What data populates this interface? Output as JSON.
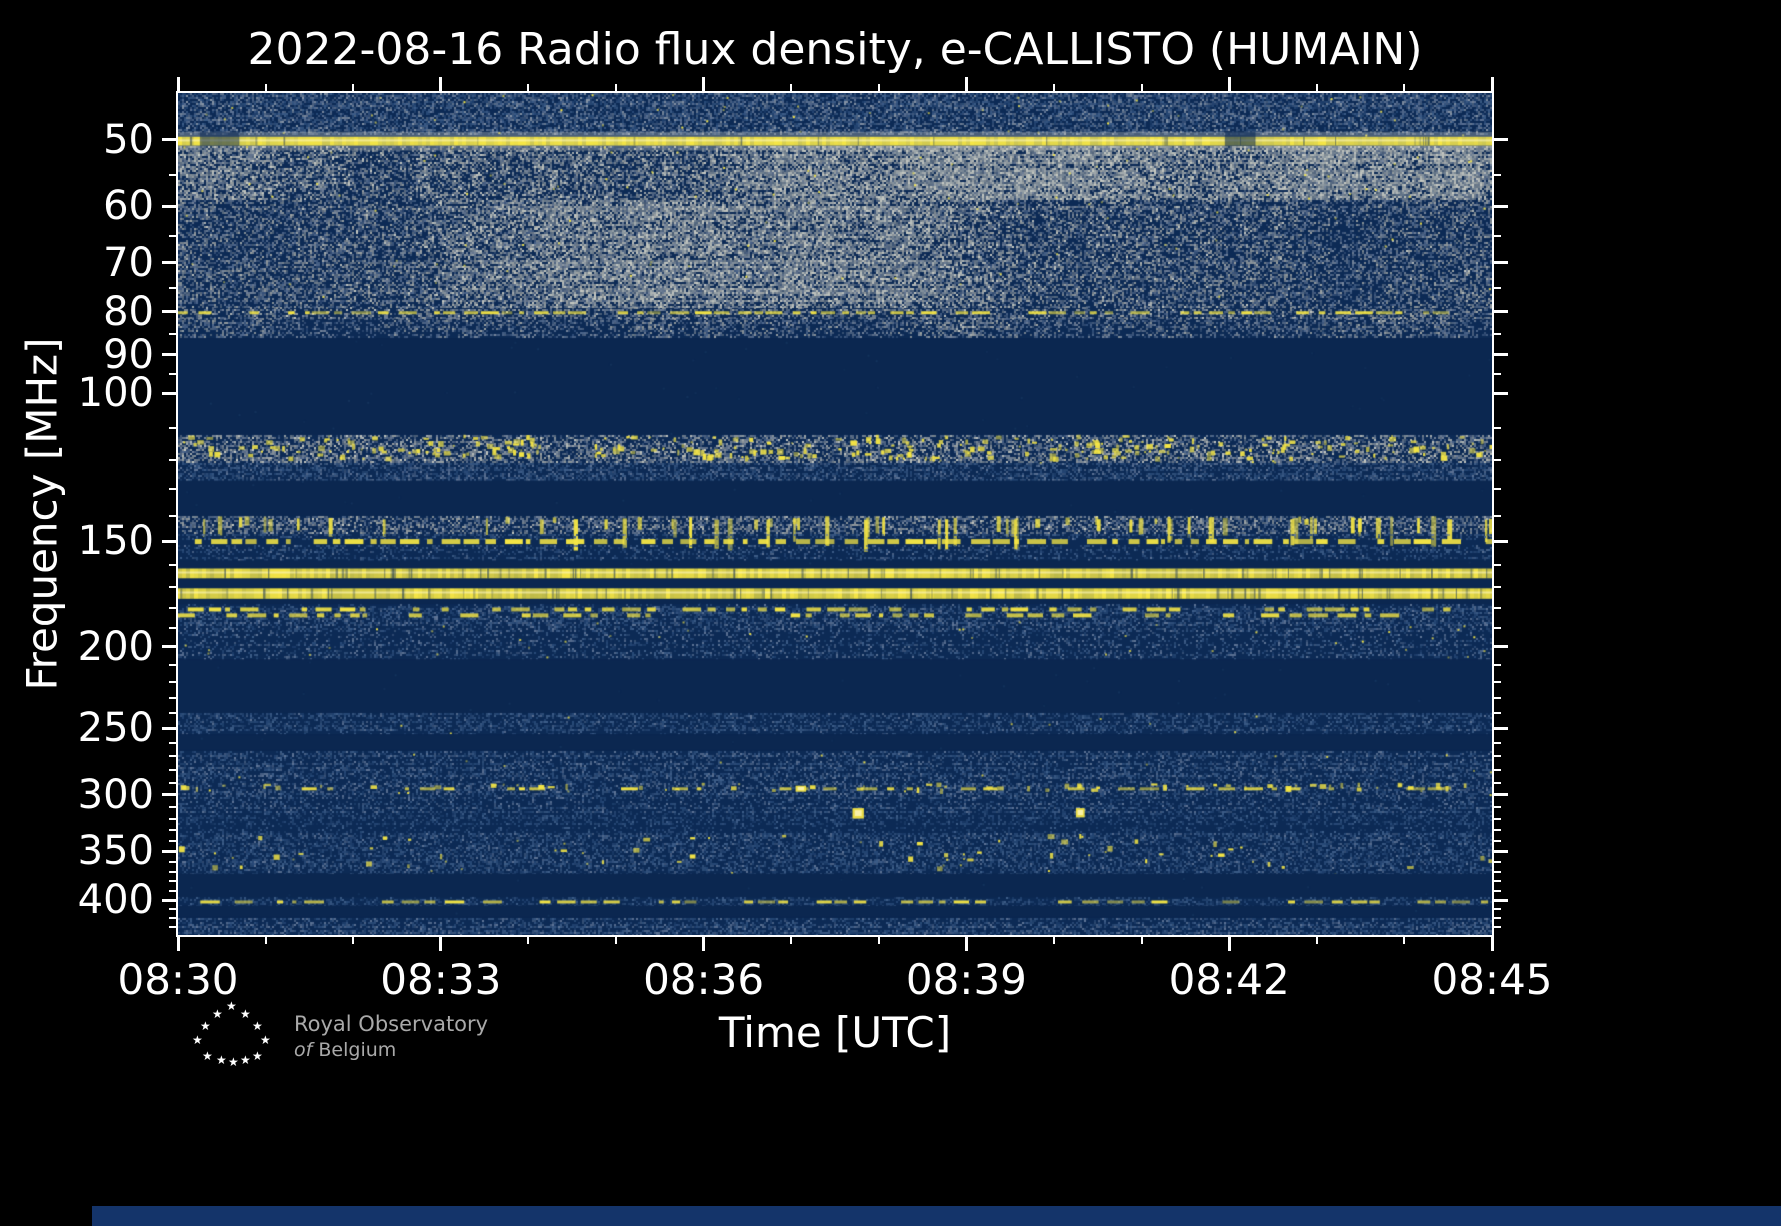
{
  "chart_data": {
    "type": "heatmap",
    "title": "2022-08-16 Radio flux density, e-CALLISTO (HUMAIN)",
    "xlabel": "Time [UTC]",
    "ylabel": "Frequency [MHz]",
    "x_range_minutes": [
      0,
      15
    ],
    "x_minor_step": 1,
    "x_ticks": [
      {
        "m": 0,
        "label": "08:30"
      },
      {
        "m": 3,
        "label": "08:33"
      },
      {
        "m": 6,
        "label": "08:36"
      },
      {
        "m": 9,
        "label": "08:39"
      },
      {
        "m": 12,
        "label": "08:42"
      },
      {
        "m": 15,
        "label": "08:45"
      }
    ],
    "y_scale": "log",
    "y_range_mhz": [
      44,
      440
    ],
    "y_ticks_mhz": [
      50,
      60,
      70,
      80,
      90,
      100,
      150,
      200,
      250,
      300,
      350,
      400
    ],
    "colors": {
      "bg": "#0c2a55",
      "bg_quiet": "#0b2750",
      "accent": "#f5e645",
      "halo": "#d9dcd2",
      "white_core": "#fdf6c0",
      "dark_speck": "#1e416b",
      "faint_line": "#7287a0",
      "bottom_strip": "#14346a",
      "palette_blue": [
        "#1b3a66",
        "#2a4c7a",
        "#41618c",
        "#64799a",
        "#8e9bab"
      ],
      "palette_gray": [
        "#32507c",
        "#546c90",
        "#7d8ba0",
        "#a6aaa8",
        "#d2d3c9"
      ]
    },
    "bands": [
      {
        "f0": 44,
        "f1": 49.4,
        "kind": "noise",
        "tint": "blue",
        "level": 0.5,
        "density": 0.8,
        "yspecks": 0.05
      },
      {
        "f0": 49.6,
        "f1": 50.8,
        "kind": "line",
        "halo": true,
        "hairlines": 20,
        "gaps": [
          {
            "m": 0.25,
            "w": 0.45,
            "dim": 0.55
          },
          {
            "m": 11.95,
            "w": 0.35,
            "dim": 0.6
          }
        ]
      },
      {
        "f0": 50.9,
        "f1": 59,
        "kind": "noise",
        "tint": "gray",
        "level": 0.62,
        "density": 0.85,
        "clouds": true,
        "yspecks": 0.05
      },
      {
        "f0": 59,
        "f1": 79,
        "kind": "noise",
        "tint": "gray",
        "level": 0.5,
        "density": 0.8,
        "clouds": true,
        "yspecks": 0.02
      },
      {
        "f0": 79,
        "f1": 81.5,
        "kind": "dashline",
        "th": 3,
        "density": 0.75,
        "alpha": 0.45,
        "noise_level": 0.45,
        "tint": "gray"
      },
      {
        "f0": 81.5,
        "f1": 86,
        "kind": "noise",
        "tint": "gray",
        "level": 0.45,
        "density": 0.75,
        "clouds": true
      },
      {
        "f0": 86,
        "f1": 112,
        "kind": "dark"
      },
      {
        "f0": 112,
        "f1": 121,
        "kind": "rfi",
        "tint": "gray",
        "level": 0.5,
        "density": 0.75,
        "bursts": 260,
        "bstyle": "dash",
        "yspecks": 0.08
      },
      {
        "f0": 121,
        "f1": 127,
        "kind": "noise",
        "tint": "blue",
        "level": 0.4,
        "density": 0.6,
        "rows": true
      },
      {
        "f0": 127,
        "f1": 140,
        "kind": "dark"
      },
      {
        "f0": 140,
        "f1": 147,
        "kind": "rfi",
        "tint": "gray",
        "level": 0.45,
        "density": 0.7,
        "bursts": 70,
        "bstyle": "streak",
        "drip": true
      },
      {
        "f0": 147,
        "f1": 148.8,
        "kind": "noise",
        "tint": "blue",
        "level": 0.36,
        "density": 0.6,
        "rows": true
      },
      {
        "f0": 148.8,
        "f1": 151.3,
        "kind": "dashline",
        "th": 5,
        "density": 0.85,
        "alpha": 0.7
      },
      {
        "f0": 151.3,
        "f1": 158,
        "kind": "noise",
        "tint": "blue",
        "level": 0.36,
        "density": 0.55,
        "rows": true
      },
      {
        "f0": 158,
        "f1": 161.5,
        "kind": "dark"
      },
      {
        "f0": 161.5,
        "f1": 166,
        "kind": "line",
        "hairlines": 60
      },
      {
        "f0": 166,
        "f1": 170.5,
        "kind": "dark"
      },
      {
        "f0": 170.5,
        "f1": 175.5,
        "kind": "line",
        "hairlines": 60
      },
      {
        "f0": 175.5,
        "f1": 178,
        "kind": "dark"
      },
      {
        "f0": 178,
        "f1": 186,
        "kind": "dashline",
        "th": 4,
        "rows2": true,
        "density": 0.6,
        "alpha": 0.6,
        "noise_level": 0.35,
        "tint": "blue"
      },
      {
        "f0": 186,
        "f1": 207,
        "kind": "noise",
        "tint": "blue",
        "level": 0.42,
        "density": 0.7,
        "rows": true,
        "fade": true,
        "yspecks": 0.05
      },
      {
        "f0": 207,
        "f1": 240,
        "kind": "dark"
      },
      {
        "f0": 240,
        "f1": 254,
        "kind": "noise",
        "tint": "blue",
        "level": 0.34,
        "density": 0.55,
        "rows": true,
        "yspecks": 0.02
      },
      {
        "f0": 254,
        "f1": 266,
        "kind": "dark"
      },
      {
        "f0": 266,
        "f1": 290,
        "kind": "noise",
        "tint": "blue",
        "level": 0.4,
        "density": 0.65,
        "rows": true,
        "yspecks": 0.02
      },
      {
        "f0": 290,
        "f1": 300,
        "kind": "rfi",
        "tint": "blue",
        "level": 0.42,
        "density": 0.65,
        "bursts": 60,
        "bstyle": "dash",
        "midline": 295,
        "yspecks": 0.06
      },
      {
        "f0": 300,
        "f1": 315,
        "kind": "noise",
        "tint": "blue",
        "level": 0.38,
        "density": 0.6,
        "rows": true
      },
      {
        "f0": 315,
        "f1": 333,
        "kind": "noise",
        "tint": "blue",
        "level": 0.28,
        "density": 0.45,
        "rows": true
      },
      {
        "f0": 333,
        "f1": 372,
        "kind": "rfi",
        "tint": "blue",
        "level": 0.36,
        "density": 0.6,
        "bursts": 45,
        "bstyle": "dash",
        "yspecks": 0.03
      },
      {
        "f0": 372,
        "f1": 397,
        "kind": "dark"
      },
      {
        "f0": 397,
        "f1": 406,
        "kind": "noise",
        "tint": "blue",
        "level": 0.3,
        "density": 0.5,
        "rows": true,
        "midline": 402
      },
      {
        "f0": 406,
        "f1": 420,
        "kind": "dark"
      },
      {
        "f0": 420,
        "f1": 440,
        "kind": "noise",
        "tint": "blue",
        "level": 0.4,
        "density": 0.65,
        "rows": true
      }
    ],
    "blobs": [
      {
        "m": 7.7,
        "f": 311,
        "w": 0.13,
        "df": 9
      },
      {
        "m": 10.25,
        "f": 311,
        "w": 0.1,
        "df": 8
      },
      {
        "m": 7.05,
        "f": 292.5,
        "w": 0.12,
        "df": 4
      }
    ]
  },
  "footer": {
    "line1": "Royal Observatory",
    "line2_italic": "of",
    "line2": "Belgium"
  },
  "icons": {
    "star": "★"
  }
}
